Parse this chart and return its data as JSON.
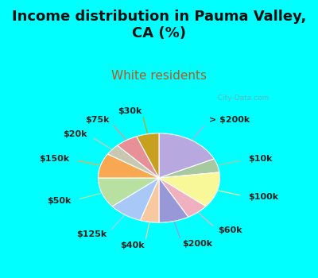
{
  "title": "Income distribution in Pauma Valley,\nCA (%)",
  "subtitle": "White residents",
  "bg_cyan": "#00FFFF",
  "bg_chart": "#e0f0e8",
  "watermark": "  City-Data.com",
  "slices": [
    {
      "label": "> $200k",
      "value": 18,
      "color": "#b8a8e0"
    },
    {
      "label": "$10k",
      "value": 5,
      "color": "#a8c8a0"
    },
    {
      "label": "$100k",
      "value": 13,
      "color": "#f8f898"
    },
    {
      "label": "$60k",
      "value": 6,
      "color": "#f0b0c0"
    },
    {
      "label": "$200k",
      "value": 8,
      "color": "#9898d8"
    },
    {
      "label": "$40k",
      "value": 5,
      "color": "#f8c8a0"
    },
    {
      "label": "$125k",
      "value": 9,
      "color": "#a8c8f8"
    },
    {
      "label": "$50k",
      "value": 11,
      "color": "#b8e0a0"
    },
    {
      "label": "$150k",
      "value": 9,
      "color": "#f8a850"
    },
    {
      "label": "$20k",
      "value": 4,
      "color": "#c8c8b0"
    },
    {
      "label": "$75k",
      "value": 6,
      "color": "#e89098"
    },
    {
      "label": "$30k",
      "value": 6,
      "color": "#c8a020"
    }
  ],
  "title_fontsize": 13,
  "subtitle_fontsize": 11,
  "label_fontsize": 8,
  "title_color": "#111111",
  "subtitle_color": "#b85820"
}
